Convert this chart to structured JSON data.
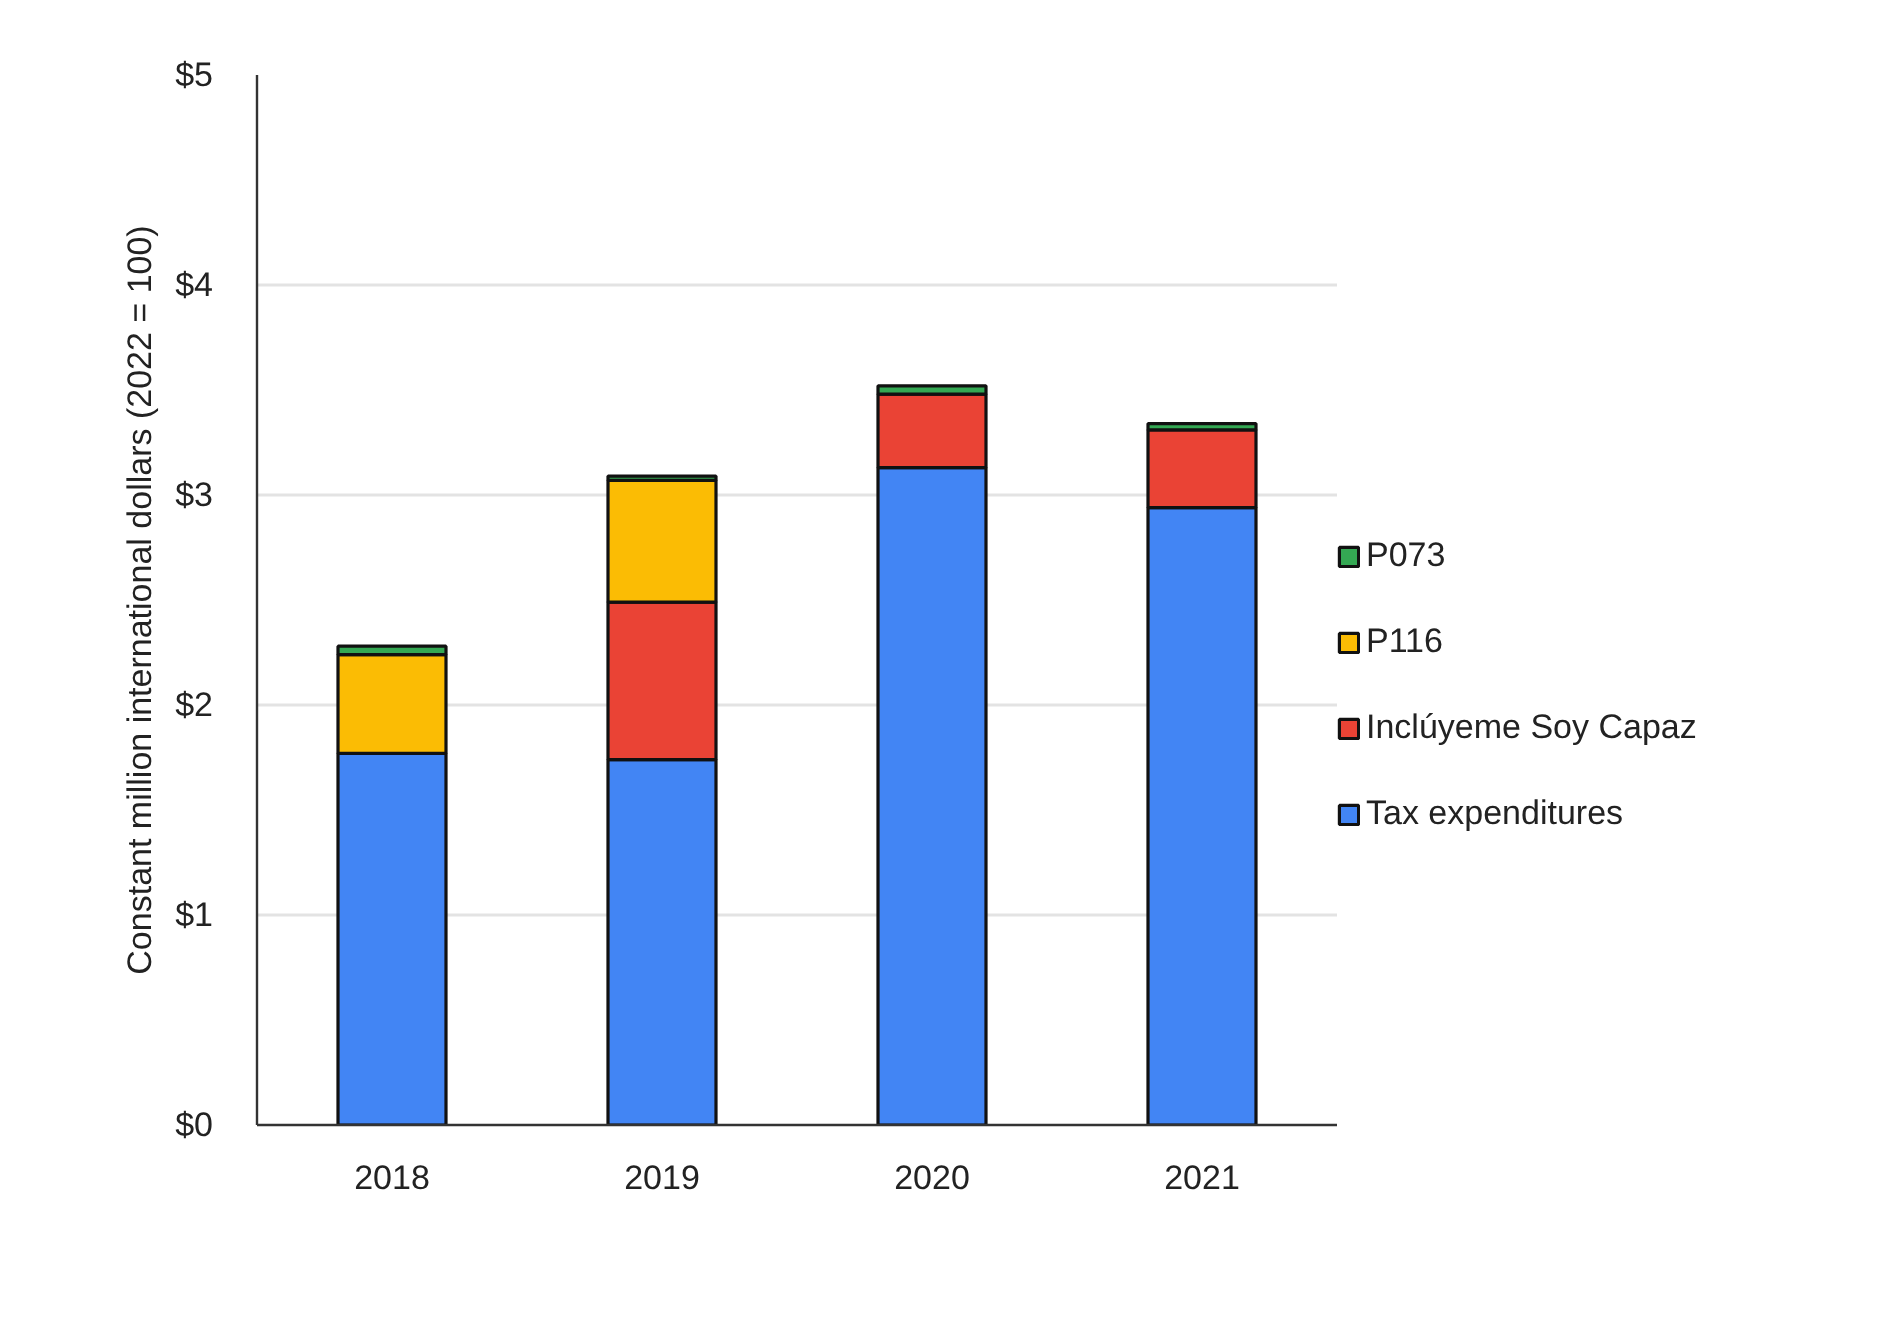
{
  "chart_data": {
    "type": "bar",
    "stacked": true,
    "ylabel": "Constant million international dollars (2022 = 100)",
    "categories": [
      "2018",
      "2019",
      "2020",
      "2021"
    ],
    "series": [
      {
        "name": "Tax expenditures",
        "color": "#4285f4",
        "values": [
          1.77,
          1.74,
          3.13,
          2.94
        ]
      },
      {
        "name": "Inclúyeme Soy Capaz",
        "color": "#ea4335",
        "values": [
          null,
          0.75,
          0.35,
          0.37
        ]
      },
      {
        "name": "P116",
        "color": "#fbbc04",
        "values": [
          0.47,
          0.58,
          null,
          null
        ]
      },
      {
        "name": "P073",
        "color": "#34a853",
        "values": [
          0.04,
          0.02,
          0.04,
          0.03
        ]
      }
    ],
    "ylim": [
      0,
      5
    ],
    "yticks": [
      {
        "value": 0,
        "label": "$0"
      },
      {
        "value": 1,
        "label": "$1"
      },
      {
        "value": 2,
        "label": "$2"
      },
      {
        "value": 3,
        "label": "$3"
      },
      {
        "value": 4,
        "label": "$4"
      },
      {
        "value": 5,
        "label": "$5"
      }
    ],
    "grid": "y",
    "legend": "right"
  }
}
